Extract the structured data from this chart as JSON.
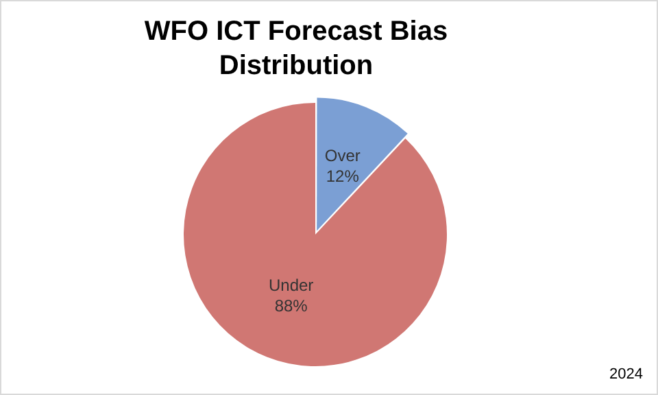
{
  "chart_data": {
    "type": "pie",
    "title": "WFO ICT Forecast Bias Distribution",
    "categories": [
      "Over",
      "Under"
    ],
    "values": [
      12,
      88
    ],
    "value_labels": [
      "12%",
      "88%"
    ],
    "colors": [
      "#7b9fd4",
      "#d07773"
    ],
    "legend": false,
    "annotations": [
      "2024"
    ]
  }
}
